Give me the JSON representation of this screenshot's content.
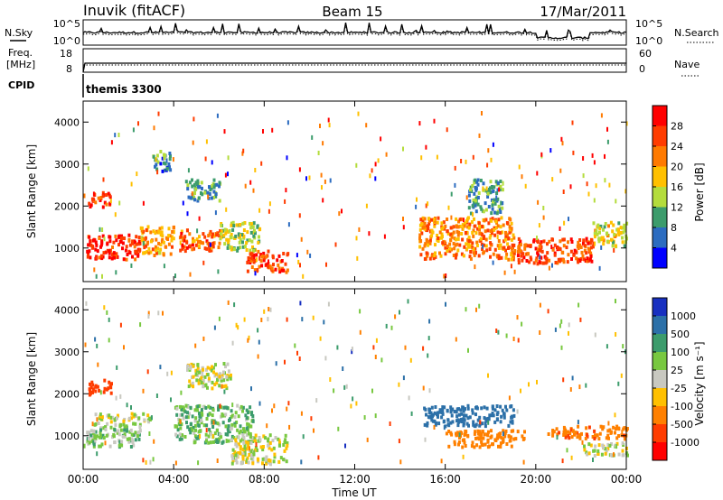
{
  "header": {
    "title": "Inuvik (fitACF)",
    "beam": "Beam 15",
    "date": "17/Mar/2011"
  },
  "top_panels": {
    "noise": {
      "left_label": "N.Sky",
      "right_label": "N.Search",
      "left_ticks": [
        "10^5",
        "10^0"
      ],
      "right_ticks": [
        "10^5",
        "10^0"
      ]
    },
    "freq": {
      "left_label_1": "Freq.",
      "left_label_2": "[MHz]",
      "right_label": "Nave",
      "left_ticks": [
        "18",
        "8"
      ],
      "right_ticks": [
        "60",
        "0"
      ]
    },
    "cpid": {
      "label": "CPID",
      "program": "themis 3300"
    }
  },
  "axes": {
    "xlabel": "Time UT",
    "xticks": [
      "00:00",
      "04:00",
      "08:00",
      "12:00",
      "16:00",
      "20:00",
      "00:00"
    ],
    "ylabel": "Slant Range [km]",
    "yticks": [
      "1000",
      "2000",
      "3000",
      "4000"
    ]
  },
  "power_colorbar": {
    "label": "Power [dB]",
    "ticks": [
      "28",
      "24",
      "20",
      "16",
      "12",
      "8",
      "4"
    ],
    "colors": [
      "#ff0000",
      "#ff3c00",
      "#ff7a00",
      "#ffc000",
      "#b4dc3c",
      "#3c9c6c",
      "#2c6cc0",
      "#0000ff"
    ]
  },
  "velocity_colorbar": {
    "label": "Velocity [m s⁻¹]",
    "ticks": [
      "1000",
      "500",
      "100",
      "25",
      "-25",
      "-100",
      "-500",
      "-1000"
    ],
    "colors": [
      "#1830c0",
      "#2c70a8",
      "#3c9c6c",
      "#78c840",
      "#c8c8c0",
      "#ffc000",
      "#ff8000",
      "#ff3c00",
      "#ff0000"
    ]
  },
  "chart_data": {
    "type": "heatmap",
    "x_range_hours": [
      0,
      24
    ],
    "y_range_km": [
      200,
      4500
    ],
    "power_blobs": [
      {
        "t": [
          0.1,
          2.5
        ],
        "r": [
          700,
          1300
        ],
        "value": 28
      },
      {
        "t": [
          2.5,
          4.0
        ],
        "r": [
          800,
          1500
        ],
        "value": 20
      },
      {
        "t": [
          0.2,
          1.2
        ],
        "r": [
          1950,
          2300
        ],
        "value": 28
      },
      {
        "t": [
          4.2,
          6.0
        ],
        "r": [
          900,
          1400
        ],
        "value": 24
      },
      {
        "t": [
          4.5,
          6.0
        ],
        "r": [
          2100,
          2600
        ],
        "value": 10
      },
      {
        "t": [
          6.0,
          7.8
        ],
        "r": [
          900,
          1600
        ],
        "value": 14
      },
      {
        "t": [
          7.2,
          9.0
        ],
        "r": [
          400,
          900
        ],
        "value": 26
      },
      {
        "t": [
          3.0,
          3.8
        ],
        "r": [
          2800,
          3300
        ],
        "value": 8
      },
      {
        "t": [
          14.8,
          19.0
        ],
        "r": [
          700,
          1700
        ],
        "value": 22
      },
      {
        "t": [
          19.0,
          22.5
        ],
        "r": [
          600,
          1200
        ],
        "value": 26
      },
      {
        "t": [
          22.5,
          24.0
        ],
        "r": [
          1000,
          1600
        ],
        "value": 16
      },
      {
        "t": [
          17.0,
          18.5
        ],
        "r": [
          1800,
          2600
        ],
        "value": 10
      }
    ],
    "velocity_blobs": [
      {
        "t": [
          0.1,
          2.5
        ],
        "r": [
          700,
          1300
        ],
        "value": 50
      },
      {
        "t": [
          0.2,
          1.2
        ],
        "r": [
          1950,
          2300
        ],
        "value": -600
      },
      {
        "t": [
          0.5,
          3.0
        ],
        "r": [
          1300,
          1500
        ],
        "value": 0
      },
      {
        "t": [
          4.0,
          7.5
        ],
        "r": [
          800,
          1700
        ],
        "value": 80
      },
      {
        "t": [
          4.5,
          6.5
        ],
        "r": [
          2100,
          2700
        ],
        "value": 0
      },
      {
        "t": [
          6.5,
          9.0
        ],
        "r": [
          300,
          1000
        ],
        "value": 0
      },
      {
        "t": [
          15.0,
          19.0
        ],
        "r": [
          1200,
          1700
        ],
        "value": 900
      },
      {
        "t": [
          16.0,
          19.5
        ],
        "r": [
          700,
          1100
        ],
        "value": -400
      },
      {
        "t": [
          20.5,
          24.0
        ],
        "r": [
          900,
          1200
        ],
        "value": -450
      },
      {
        "t": [
          22.0,
          24.0
        ],
        "r": [
          500,
          800
        ],
        "value": 0
      }
    ]
  }
}
